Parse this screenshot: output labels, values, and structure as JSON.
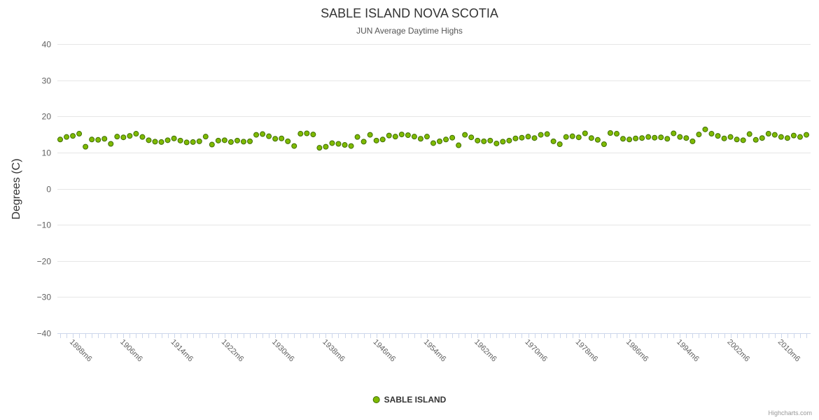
{
  "header": {
    "title": "SABLE ISLAND NOVA SCOTIA",
    "subtitle": "JUN Average Daytime Highs"
  },
  "legend": {
    "label": "SABLE ISLAND"
  },
  "credits": {
    "label": "Highcharts.com"
  },
  "chart_data": {
    "type": "scatter",
    "title": "SABLE ISLAND NOVA SCOTIA",
    "subtitle": "JUN Average Daytime Highs",
    "xlabel": "",
    "ylabel": "Degrees (C)",
    "ylim": [
      -40,
      40
    ],
    "grid": true,
    "legend_position": "bottom",
    "grid_color": "#e6e6e6",
    "axis_color": "#ccd6eb",
    "label_color": "#606060",
    "yticks": [
      {
        "value": 40,
        "label": "40"
      },
      {
        "value": 30,
        "label": "30"
      },
      {
        "value": 20,
        "label": "20"
      },
      {
        "value": 10,
        "label": "10"
      },
      {
        "value": 0,
        "label": "0"
      },
      {
        "value": -10,
        "label": "−10"
      },
      {
        "value": -20,
        "label": "−20"
      },
      {
        "value": -30,
        "label": "−30"
      },
      {
        "value": -40,
        "label": "−40"
      }
    ],
    "start_year": 1897,
    "x_suffix": "m6",
    "xticks": [
      {
        "year": 1898,
        "label": "1898m6"
      },
      {
        "year": 1906,
        "label": "1906m6"
      },
      {
        "year": 1914,
        "label": "1914m6"
      },
      {
        "year": 1922,
        "label": "1922m6"
      },
      {
        "year": 1930,
        "label": "1930m6"
      },
      {
        "year": 1938,
        "label": "1938m6"
      },
      {
        "year": 1946,
        "label": "1946m6"
      },
      {
        "year": 1954,
        "label": "1954m6"
      },
      {
        "year": 1962,
        "label": "1962m6"
      },
      {
        "year": 1970,
        "label": "1970m6"
      },
      {
        "year": 1978,
        "label": "1978m6"
      },
      {
        "year": 1986,
        "label": "1986m6"
      },
      {
        "year": 1994,
        "label": "1994m6"
      },
      {
        "year": 2002,
        "label": "2002m6"
      },
      {
        "year": 2010,
        "label": "2010m6"
      }
    ],
    "series": [
      {
        "name": "SABLE ISLAND",
        "marker": {
          "fill": "#7fba00",
          "stroke": "#3e6e00",
          "radius": 3.5
        },
        "values": [
          13.6,
          14.3,
          14.6,
          15.2,
          11.6,
          13.6,
          13.5,
          13.8,
          12.4,
          14.4,
          14.2,
          14.6,
          15.2,
          14.3,
          13.4,
          13.0,
          12.9,
          13.4,
          13.9,
          13.3,
          12.8,
          12.9,
          13.1,
          14.4,
          12.2,
          13.3,
          13.4,
          12.9,
          13.3,
          13.0,
          13.1,
          14.9,
          15.1,
          14.5,
          13.8,
          13.9,
          13.1,
          11.8,
          15.2,
          15.3,
          15.0,
          11.3,
          11.6,
          12.6,
          12.4,
          12.1,
          11.8,
          14.3,
          13.0,
          14.9,
          13.3,
          13.6,
          14.7,
          14.4,
          15.0,
          14.8,
          14.4,
          13.8,
          14.4,
          12.6,
          13.1,
          13.6,
          14.1,
          12.0,
          14.9,
          14.2,
          13.3,
          13.1,
          13.3,
          12.5,
          13.0,
          13.3,
          13.9,
          14.1,
          14.4,
          14.0,
          14.9,
          15.1,
          13.1,
          12.3,
          14.3,
          14.5,
          14.2,
          15.3,
          14.0,
          13.5,
          12.3,
          15.4,
          15.2,
          13.8,
          13.6,
          13.9,
          14.0,
          14.3,
          14.1,
          14.2,
          13.8,
          15.3,
          14.3,
          14.0,
          13.1,
          15.0,
          16.4,
          15.2,
          14.6,
          13.9,
          14.3,
          13.6,
          13.4,
          15.1,
          13.5,
          14.0,
          15.2,
          14.9,
          14.3,
          14.0,
          14.7,
          14.3,
          14.9
        ]
      }
    ]
  }
}
